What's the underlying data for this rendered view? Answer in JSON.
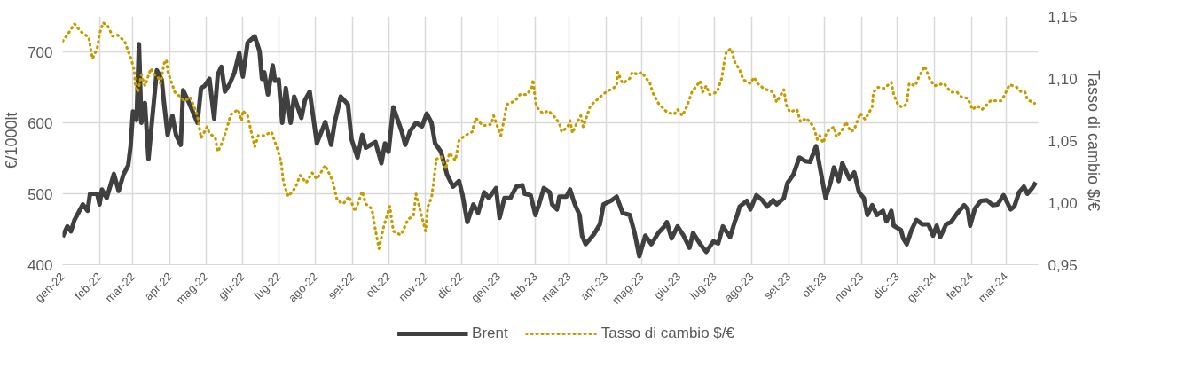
{
  "chart_data": {
    "type": "line",
    "ylabel": "€/1000lt",
    "y2label": "Tasso di cambio $/€",
    "xlim": [
      "2022-01-01",
      "2024-03-28"
    ],
    "xticks": [
      {
        "value": "2022-01-01",
        "label": "gen-22"
      },
      {
        "value": "2022-02-01",
        "label": "feb-22"
      },
      {
        "value": "2022-03-01",
        "label": "mar-22"
      },
      {
        "value": "2022-04-01",
        "label": "apr-22"
      },
      {
        "value": "2022-05-01",
        "label": "mag-22"
      },
      {
        "value": "2022-06-01",
        "label": "giu-22"
      },
      {
        "value": "2022-07-01",
        "label": "lug-22"
      },
      {
        "value": "2022-08-01",
        "label": "ago-22"
      },
      {
        "value": "2022-09-01",
        "label": "set-22"
      },
      {
        "value": "2022-10-01",
        "label": "ott-22"
      },
      {
        "value": "2022-11-01",
        "label": "nov-22"
      },
      {
        "value": "2022-12-01",
        "label": "dic-22"
      },
      {
        "value": "2023-01-01",
        "label": "gen-23"
      },
      {
        "value": "2023-02-01",
        "label": "feb-23"
      },
      {
        "value": "2023-03-01",
        "label": "mar-23"
      },
      {
        "value": "2023-04-01",
        "label": "apr-23"
      },
      {
        "value": "2023-05-01",
        "label": "mag-23"
      },
      {
        "value": "2023-06-01",
        "label": "giu-23"
      },
      {
        "value": "2023-07-01",
        "label": "lug-23"
      },
      {
        "value": "2023-08-01",
        "label": "ago-23"
      },
      {
        "value": "2023-09-01",
        "label": "set-23"
      },
      {
        "value": "2023-10-01",
        "label": "ott-23"
      },
      {
        "value": "2023-11-01",
        "label": "nov-23"
      },
      {
        "value": "2023-12-01",
        "label": "dic-23"
      },
      {
        "value": "2024-01-01",
        "label": "gen-24"
      },
      {
        "value": "2024-02-01",
        "label": "feb-24"
      },
      {
        "value": "2024-03-01",
        "label": "mar-24"
      }
    ],
    "ylim": [
      400,
      750
    ],
    "yticks": [
      400,
      500,
      600,
      700
    ],
    "y2lim": [
      0.95,
      1.15
    ],
    "y2ticks": [
      {
        "value": 0.95,
        "label": "0,95"
      },
      {
        "value": 1.0,
        "label": "1,00"
      },
      {
        "value": 1.05,
        "label": "1,05"
      },
      {
        "value": 1.1,
        "label": "1,10"
      },
      {
        "value": 1.15,
        "label": "1,15"
      }
    ],
    "grid": true,
    "legend": "bottom",
    "series": [
      {
        "name": "Brent",
        "color": "#404040",
        "line_style": "solid",
        "x": [
          "2022-01-01",
          "2022-01-05",
          "2022-01-08",
          "2022-01-11",
          "2022-01-18",
          "2022-01-22",
          "2022-01-24",
          "2022-01-30",
          "2022-02-01",
          "2022-02-03",
          "2022-02-07",
          "2022-02-13",
          "2022-02-17",
          "2022-02-21",
          "2022-02-25",
          "2022-02-27",
          "2022-03-01",
          "2022-03-04",
          "2022-03-06",
          "2022-03-08",
          "2022-03-11",
          "2022-03-14",
          "2022-03-17",
          "2022-03-21",
          "2022-03-25",
          "2022-03-27",
          "2022-03-30",
          "2022-04-03",
          "2022-04-06",
          "2022-04-10",
          "2022-04-12",
          "2022-04-17",
          "2022-04-24",
          "2022-04-27",
          "2022-04-30",
          "2022-05-04",
          "2022-05-08",
          "2022-05-11",
          "2022-05-14",
          "2022-05-17",
          "2022-05-21",
          "2022-05-25",
          "2022-05-29",
          "2022-06-01",
          "2022-06-05",
          "2022-06-11",
          "2022-06-15",
          "2022-06-17",
          "2022-06-19",
          "2022-06-22",
          "2022-06-26",
          "2022-06-28",
          "2022-07-01",
          "2022-07-04",
          "2022-07-07",
          "2022-07-11",
          "2022-07-14",
          "2022-07-20",
          "2022-07-23",
          "2022-07-27",
          "2022-08-02",
          "2022-08-09",
          "2022-08-14",
          "2022-08-17",
          "2022-08-22",
          "2022-08-28",
          "2022-08-31",
          "2022-09-05",
          "2022-09-09",
          "2022-09-12",
          "2022-09-20",
          "2022-09-25",
          "2022-09-28",
          "2022-10-01",
          "2022-10-05",
          "2022-10-12",
          "2022-10-15",
          "2022-10-19",
          "2022-10-24",
          "2022-10-29",
          "2022-11-02",
          "2022-11-06",
          "2022-11-09",
          "2022-11-14",
          "2022-11-19",
          "2022-11-24",
          "2022-11-29",
          "2022-12-02",
          "2022-12-06",
          "2022-12-11",
          "2022-12-15",
          "2022-12-20",
          "2022-12-24",
          "2022-12-30",
          "2023-01-02",
          "2023-01-06",
          "2023-01-11",
          "2023-01-16",
          "2023-01-21",
          "2023-01-23",
          "2023-01-28",
          "2023-02-01",
          "2023-02-04",
          "2023-02-08",
          "2023-02-13",
          "2023-02-15",
          "2023-02-19",
          "2023-02-21",
          "2023-02-27",
          "2023-03-02",
          "2023-03-06",
          "2023-03-10",
          "2023-03-12",
          "2023-03-15",
          "2023-03-22",
          "2023-03-27",
          "2023-03-30",
          "2023-04-06",
          "2023-04-10",
          "2023-04-15",
          "2023-04-21",
          "2023-04-25",
          "2023-04-29",
          "2023-05-04",
          "2023-05-09",
          "2023-05-15",
          "2023-05-20",
          "2023-05-22",
          "2023-05-26",
          "2023-05-31",
          "2023-06-05",
          "2023-06-10",
          "2023-06-13",
          "2023-06-19",
          "2023-06-24",
          "2023-06-30",
          "2023-07-04",
          "2023-07-08",
          "2023-07-14",
          "2023-07-18",
          "2023-07-20",
          "2023-07-22",
          "2023-07-28",
          "2023-07-31",
          "2023-08-05",
          "2023-08-10",
          "2023-08-14",
          "2023-08-19",
          "2023-08-22",
          "2023-08-28",
          "2023-08-31",
          "2023-09-05",
          "2023-09-10",
          "2023-09-15",
          "2023-09-19",
          "2023-09-24",
          "2023-09-28",
          "2023-10-02",
          "2023-10-06",
          "2023-10-09",
          "2023-10-13",
          "2023-10-16",
          "2023-10-22",
          "2023-10-26",
          "2023-10-30",
          "2023-11-03",
          "2023-11-06",
          "2023-11-10",
          "2023-11-14",
          "2023-11-19",
          "2023-11-22",
          "2023-11-26",
          "2023-11-28",
          "2023-12-04",
          "2023-12-06",
          "2023-12-09",
          "2023-12-13",
          "2023-12-17",
          "2023-12-22",
          "2023-12-27",
          "2023-12-31",
          "2024-01-03",
          "2024-01-06",
          "2024-01-11",
          "2024-01-15",
          "2024-01-20",
          "2024-01-26",
          "2024-01-29",
          "2024-01-31",
          "2024-02-04",
          "2024-02-09",
          "2024-02-14",
          "2024-02-19",
          "2024-02-23",
          "2024-02-28",
          "2024-03-05",
          "2024-03-08",
          "2024-03-12",
          "2024-03-16",
          "2024-03-19",
          "2024-03-23",
          "2024-03-26"
        ],
        "values": [
          439,
          454,
          447,
          463,
          485,
          476,
          500,
          500,
          485,
          506,
          494,
          528,
          504,
          527,
          540,
          567,
          616,
          604,
          711,
          600,
          628,
          549,
          604,
          674,
          661,
          628,
          583,
          610,
          583,
          569,
          646,
          628,
          600,
          649,
          652,
          662,
          606,
          668,
          679,
          644,
          655,
          671,
          699,
          665,
          713,
          722,
          701,
          662,
          671,
          640,
          681,
          659,
          661,
          600,
          649,
          600,
          637,
          607,
          632,
          644,
          571,
          601,
          569,
          601,
          637,
          626,
          577,
          551,
          583,
          565,
          573,
          543,
          571,
          559,
          622,
          588,
          569,
          588,
          600,
          595,
          613,
          600,
          571,
          559,
          527,
          510,
          518,
          498,
          460,
          485,
          473,
          502,
          494,
          508,
          466,
          494,
          494,
          510,
          512,
          500,
          498,
          470,
          485,
          508,
          502,
          485,
          478,
          496,
          496,
          506,
          485,
          470,
          441,
          429,
          443,
          457,
          485,
          491,
          496,
          473,
          470,
          445,
          412,
          441,
          429,
          445,
          454,
          460,
          437,
          454,
          441,
          424,
          445,
          429,
          418,
          433,
          430,
          454,
          439,
          461,
          470,
          482,
          490,
          478,
          498,
          491,
          482,
          491,
          485,
          494,
          515,
          527,
          551,
          546,
          545,
          567,
          530,
          494,
          515,
          537,
          518,
          543,
          521,
          530,
          502,
          494,
          470,
          484,
          470,
          476,
          461,
          476,
          455,
          449,
          437,
          429,
          449,
          463,
          457,
          457,
          441,
          455,
          439,
          457,
          460,
          472,
          484,
          478,
          455,
          479,
          490,
          491,
          484,
          485,
          498,
          478,
          482,
          502,
          510,
          500,
          508,
          516
        ]
      },
      {
        "name": "Tasso di cambio $/€",
        "color": "#c59b00",
        "line_style": "dotted",
        "axis": "y2",
        "x": [
          "2022-01-01",
          "2022-01-05",
          "2022-01-11",
          "2022-01-16",
          "2022-01-23",
          "2022-01-26",
          "2022-01-30",
          "2022-02-01",
          "2022-02-04",
          "2022-02-08",
          "2022-02-12",
          "2022-02-16",
          "2022-02-22",
          "2022-02-25",
          "2022-02-27",
          "2022-03-02",
          "2022-03-03",
          "2022-03-05",
          "2022-03-08",
          "2022-03-11",
          "2022-03-16",
          "2022-03-19",
          "2022-03-22",
          "2022-03-24",
          "2022-03-27",
          "2022-03-29",
          "2022-03-30",
          "2022-04-05",
          "2022-04-10",
          "2022-04-13",
          "2022-04-18",
          "2022-04-22",
          "2022-04-24",
          "2022-04-27",
          "2022-05-02",
          "2022-05-04",
          "2022-05-09",
          "2022-05-11",
          "2022-05-15",
          "2022-05-18",
          "2022-05-22",
          "2022-05-28",
          "2022-05-31",
          "2022-06-01",
          "2022-06-05",
          "2022-06-08",
          "2022-06-11",
          "2022-06-14",
          "2022-06-19",
          "2022-06-25",
          "2022-06-30",
          "2022-07-03",
          "2022-07-05",
          "2022-07-09",
          "2022-07-15",
          "2022-07-19",
          "2022-07-24",
          "2022-07-29",
          "2022-08-02",
          "2022-08-09",
          "2022-08-15",
          "2022-08-19",
          "2022-08-24",
          "2022-08-29",
          "2022-09-03",
          "2022-09-09",
          "2022-09-12",
          "2022-09-17",
          "2022-09-20",
          "2022-09-23",
          "2022-09-27",
          "2022-10-02",
          "2022-10-05",
          "2022-10-11",
          "2022-10-13",
          "2022-10-17",
          "2022-10-22",
          "2022-10-24",
          "2022-10-28",
          "2022-11-01",
          "2022-11-03",
          "2022-11-06",
          "2022-11-08",
          "2022-11-10",
          "2022-11-14",
          "2022-11-18",
          "2022-11-21",
          "2022-11-26",
          "2022-11-29",
          "2022-12-04",
          "2022-12-10",
          "2022-12-13",
          "2022-12-19",
          "2022-12-26",
          "2022-12-28",
          "2023-01-01",
          "2023-01-03",
          "2023-01-06",
          "2023-01-08",
          "2023-01-15",
          "2023-01-19",
          "2023-01-25",
          "2023-01-29",
          "2023-01-30",
          "2023-02-01",
          "2023-02-02",
          "2023-02-07",
          "2023-02-12",
          "2023-02-17",
          "2023-02-21",
          "2023-02-23",
          "2023-02-28",
          "2023-03-02",
          "2023-03-04",
          "2023-03-08",
          "2023-03-11",
          "2023-03-13",
          "2023-03-19",
          "2023-03-27",
          "2023-04-01",
          "2023-04-05",
          "2023-04-10",
          "2023-04-11",
          "2023-04-15",
          "2023-04-21",
          "2023-04-23",
          "2023-04-28",
          "2023-05-01",
          "2023-05-08",
          "2023-05-10",
          "2023-05-15",
          "2023-05-22",
          "2023-05-28",
          "2023-05-31",
          "2023-06-04",
          "2023-06-08",
          "2023-06-12",
          "2023-06-19",
          "2023-06-21",
          "2023-06-24",
          "2023-06-27",
          "2023-07-03",
          "2023-07-07",
          "2023-07-09",
          "2023-07-11",
          "2023-07-15",
          "2023-07-18",
          "2023-07-22",
          "2023-07-25",
          "2023-07-31",
          "2023-08-03",
          "2023-08-06",
          "2023-08-11",
          "2023-08-19",
          "2023-08-22",
          "2023-08-28",
          "2023-08-30",
          "2023-09-02",
          "2023-09-08",
          "2023-09-11",
          "2023-09-16",
          "2023-09-22",
          "2023-09-25",
          "2023-09-27",
          "2023-09-30",
          "2023-10-03",
          "2023-10-09",
          "2023-10-11",
          "2023-10-15",
          "2023-10-19",
          "2023-10-23",
          "2023-10-26",
          "2023-10-31",
          "2023-11-04",
          "2023-11-10",
          "2023-11-11",
          "2023-11-15",
          "2023-11-20",
          "2023-11-26",
          "2023-11-28",
          "2023-12-02",
          "2023-12-06",
          "2023-12-09",
          "2023-12-11",
          "2023-12-16",
          "2023-12-19",
          "2023-12-24",
          "2023-12-28",
          "2024-01-01",
          "2024-01-09",
          "2024-01-15",
          "2024-01-20",
          "2024-01-24",
          "2024-01-29",
          "2024-02-02",
          "2024-02-06",
          "2024-02-10",
          "2024-02-17",
          "2024-02-26",
          "2024-02-28",
          "2024-03-04",
          "2024-03-10",
          "2024-03-14",
          "2024-03-17",
          "2024-03-19",
          "2024-03-25"
        ],
        "values": [
          1.13,
          1.135,
          1.144,
          1.138,
          1.133,
          1.116,
          1.124,
          1.136,
          1.145,
          1.142,
          1.134,
          1.135,
          1.13,
          1.122,
          1.117,
          1.107,
          1.094,
          1.089,
          1.103,
          1.094,
          1.108,
          1.103,
          1.101,
          1.096,
          1.112,
          1.115,
          1.106,
          1.089,
          1.085,
          1.082,
          1.085,
          1.075,
          1.07,
          1.052,
          1.061,
          1.056,
          1.052,
          1.041,
          1.049,
          1.058,
          1.071,
          1.075,
          1.066,
          1.074,
          1.07,
          1.057,
          1.045,
          1.054,
          1.054,
          1.057,
          1.043,
          1.033,
          1.016,
          1.005,
          1.012,
          1.022,
          1.016,
          1.024,
          1.019,
          1.03,
          1.018,
          1.002,
          0.999,
          1.005,
          0.993,
          1.009,
          0.999,
          0.995,
          0.978,
          0.963,
          0.981,
          0.997,
          0.977,
          0.974,
          0.977,
          0.986,
          0.99,
          1.007,
          0.992,
          0.977,
          0.997,
          1.004,
          1.018,
          1.035,
          1.037,
          1.027,
          1.04,
          1.034,
          1.05,
          1.054,
          1.057,
          1.068,
          1.062,
          1.063,
          1.07,
          1.059,
          1.054,
          1.068,
          1.079,
          1.082,
          1.087,
          1.087,
          1.093,
          1.099,
          1.082,
          1.077,
          1.072,
          1.074,
          1.069,
          1.064,
          1.057,
          1.061,
          1.066,
          1.056,
          1.065,
          1.07,
          1.061,
          1.078,
          1.085,
          1.089,
          1.091,
          1.094,
          1.105,
          1.096,
          1.1,
          1.105,
          1.103,
          1.105,
          1.096,
          1.089,
          1.08,
          1.073,
          1.071,
          1.075,
          1.07,
          1.078,
          1.089,
          1.098,
          1.089,
          1.094,
          1.087,
          1.089,
          1.1,
          1.113,
          1.122,
          1.124,
          1.113,
          1.107,
          1.099,
          1.096,
          1.101,
          1.096,
          1.092,
          1.089,
          1.081,
          1.091,
          1.079,
          1.073,
          1.075,
          1.065,
          1.068,
          1.061,
          1.051,
          1.054,
          1.048,
          1.057,
          1.061,
          1.053,
          1.057,
          1.065,
          1.057,
          1.059,
          1.072,
          1.067,
          1.077,
          1.089,
          1.093,
          1.092,
          1.097,
          1.087,
          1.078,
          1.077,
          1.08,
          1.096,
          1.094,
          1.101,
          1.11,
          1.1,
          1.094,
          1.096,
          1.089,
          1.089,
          1.085,
          1.084,
          1.075,
          1.078,
          1.075,
          1.082,
          1.082,
          1.085,
          1.095,
          1.093,
          1.089,
          1.089,
          1.083,
          1.08
        ]
      }
    ]
  }
}
